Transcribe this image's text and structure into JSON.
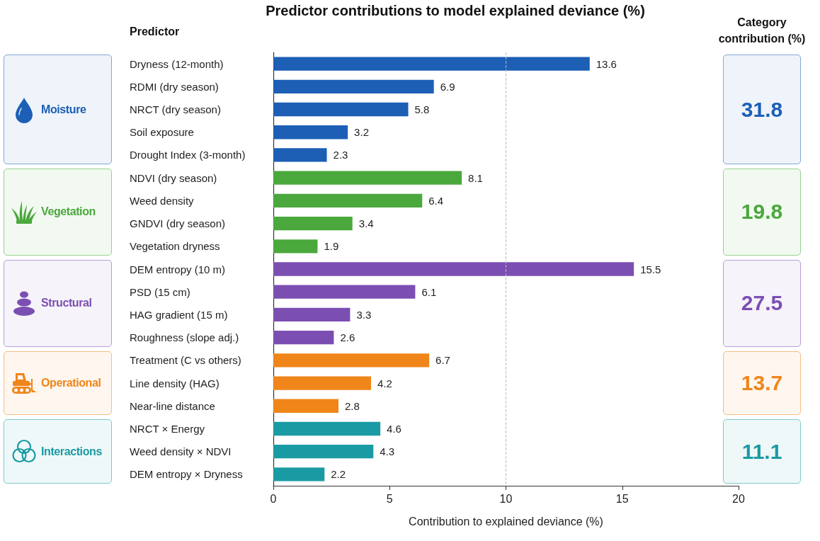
{
  "chart_data": {
    "type": "bar",
    "orientation": "horizontal",
    "title": "Predictor contributions to model explained deviance (%)",
    "ylabel": "Predictor",
    "xlabel": "Contribution to explained deviance (%)",
    "categories": [
      "Dryness (12-month)",
      "RDMI (dry season)",
      "NRCT (dry season)",
      "Soil exposure",
      "Drought Index (3-month)",
      "NDVI (dry season)",
      "Weed density",
      "GNDVI (dry season)",
      "Vegetation dryness",
      "DEM entropy (10 m)",
      "PSD (15 cm)",
      "HAG gradient (15 m)",
      "Roughness (slope adj.)",
      "Treatment (C vs others)",
      "Line density (HAG)",
      "Near-line distance",
      "NRCT × Energy",
      "Weed density × NDVI",
      "DEM entropy × Dryness"
    ],
    "series": [
      {
        "name": "Moisture",
        "color": "#1c5fb5",
        "values": [
          13.6,
          6.9,
          5.8,
          3.2,
          2.3,
          null,
          null,
          null,
          null,
          null,
          null,
          null,
          null,
          null,
          null,
          null,
          null,
          null,
          null
        ]
      },
      {
        "name": "Vegetation",
        "color": "#4aa83c",
        "values": [
          null,
          null,
          null,
          null,
          null,
          8.1,
          6.4,
          3.4,
          1.9,
          null,
          null,
          null,
          null,
          null,
          null,
          null,
          null,
          null,
          null
        ]
      },
      {
        "name": "Structural",
        "color": "#7b4fb2",
        "values": [
          null,
          null,
          null,
          null,
          null,
          null,
          null,
          null,
          null,
          15.5,
          6.1,
          3.3,
          2.6,
          null,
          null,
          null,
          null,
          null,
          null
        ]
      },
      {
        "name": "Operational",
        "color": "#f08519",
        "values": [
          null,
          null,
          null,
          null,
          null,
          null,
          null,
          null,
          null,
          null,
          null,
          null,
          null,
          6.7,
          4.2,
          2.8,
          null,
          null,
          null
        ]
      },
      {
        "name": "Interactions",
        "color": "#1a9ba3",
        "values": [
          null,
          null,
          null,
          null,
          null,
          null,
          null,
          null,
          null,
          null,
          null,
          null,
          null,
          null,
          null,
          null,
          4.6,
          4.3,
          2.2
        ]
      }
    ],
    "xlim": [
      0,
      20
    ],
    "xticks": [
      0,
      5,
      10,
      15,
      20
    ],
    "data_labels": true,
    "legend": "left",
    "ref_lines": [
      {
        "axis": "x",
        "value": 10,
        "color": "#bbbbbb",
        "line_style": "dashed"
      }
    ],
    "annotations": [
      "Category contribution (%)",
      "31.8",
      "19.8",
      "27.5",
      "13.7",
      "11.1"
    ]
  }
}
